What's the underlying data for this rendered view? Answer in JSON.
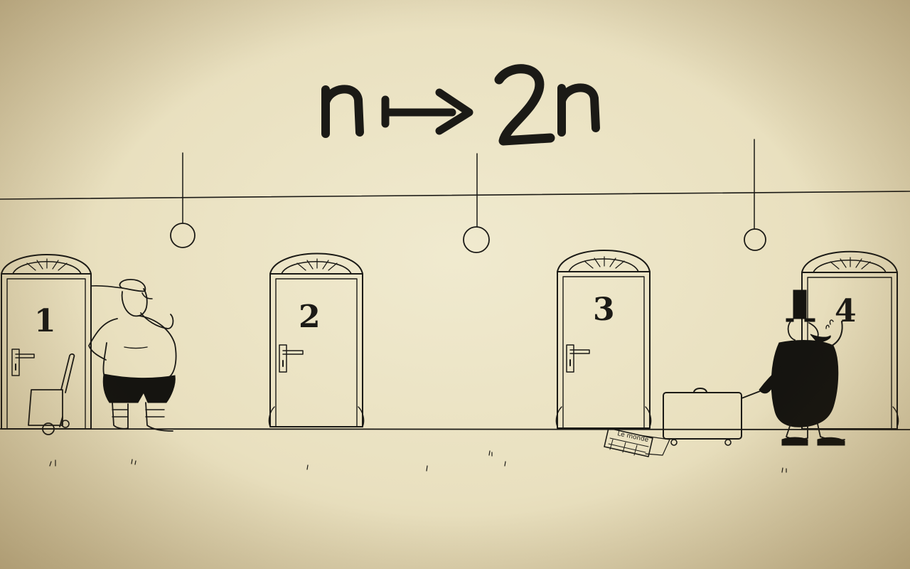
{
  "formula": {
    "left": "n",
    "arrow": "↦",
    "right": "2n"
  },
  "doors": [
    {
      "number": "1"
    },
    {
      "number": "2"
    },
    {
      "number": "3"
    },
    {
      "number": "4"
    }
  ],
  "newspaper": {
    "masthead": "Le monde"
  },
  "colors": {
    "paper": "#e9e2c4",
    "ink": "#1b1a16"
  }
}
